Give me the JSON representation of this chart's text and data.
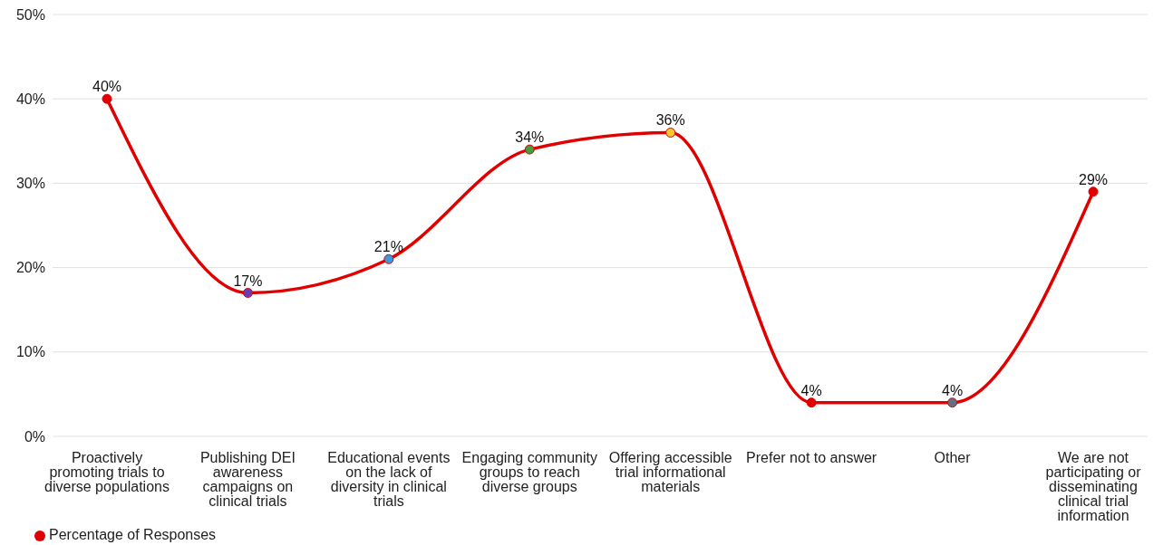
{
  "chart_data": {
    "type": "line",
    "categories": [
      "Proactively promoting trials to diverse populations",
      "Publishing DEI awareness campaigns on clinical trials",
      "Educational events on the lack of diversity in clinical trials",
      "Engaging community groups to reach diverse groups",
      "Offering accessible trial informational materials",
      "Prefer not to answer",
      "Other",
      "We are not participating or disseminating clinical trial information"
    ],
    "series": [
      {
        "name": "Percentage of Responses",
        "color": "#e00000",
        "values": [
          40,
          17,
          21,
          34,
          36,
          4,
          4,
          29
        ],
        "colors": [
          "#e00000",
          "#6a3ab0",
          "#3a9ae0",
          "#4a9a40",
          "#f5c830",
          "#e00000",
          "#647080",
          "#e00000"
        ],
        "value_labels": [
          "40%",
          "17%",
          "21%",
          "34%",
          "36%",
          "4%",
          "4%",
          "29%"
        ]
      }
    ],
    "ylim": [
      0,
      50
    ],
    "yticks": [
      {
        "value": 0,
        "label": "0%"
      },
      {
        "value": 10,
        "label": "10%"
      },
      {
        "value": 20,
        "label": "20%"
      },
      {
        "value": 30,
        "label": "30%"
      },
      {
        "value": 40,
        "label": "40%"
      },
      {
        "value": 50,
        "label": "50%"
      }
    ],
    "grid": "y",
    "legend": "bottom left",
    "marker": "circle",
    "line_style": "solid"
  }
}
